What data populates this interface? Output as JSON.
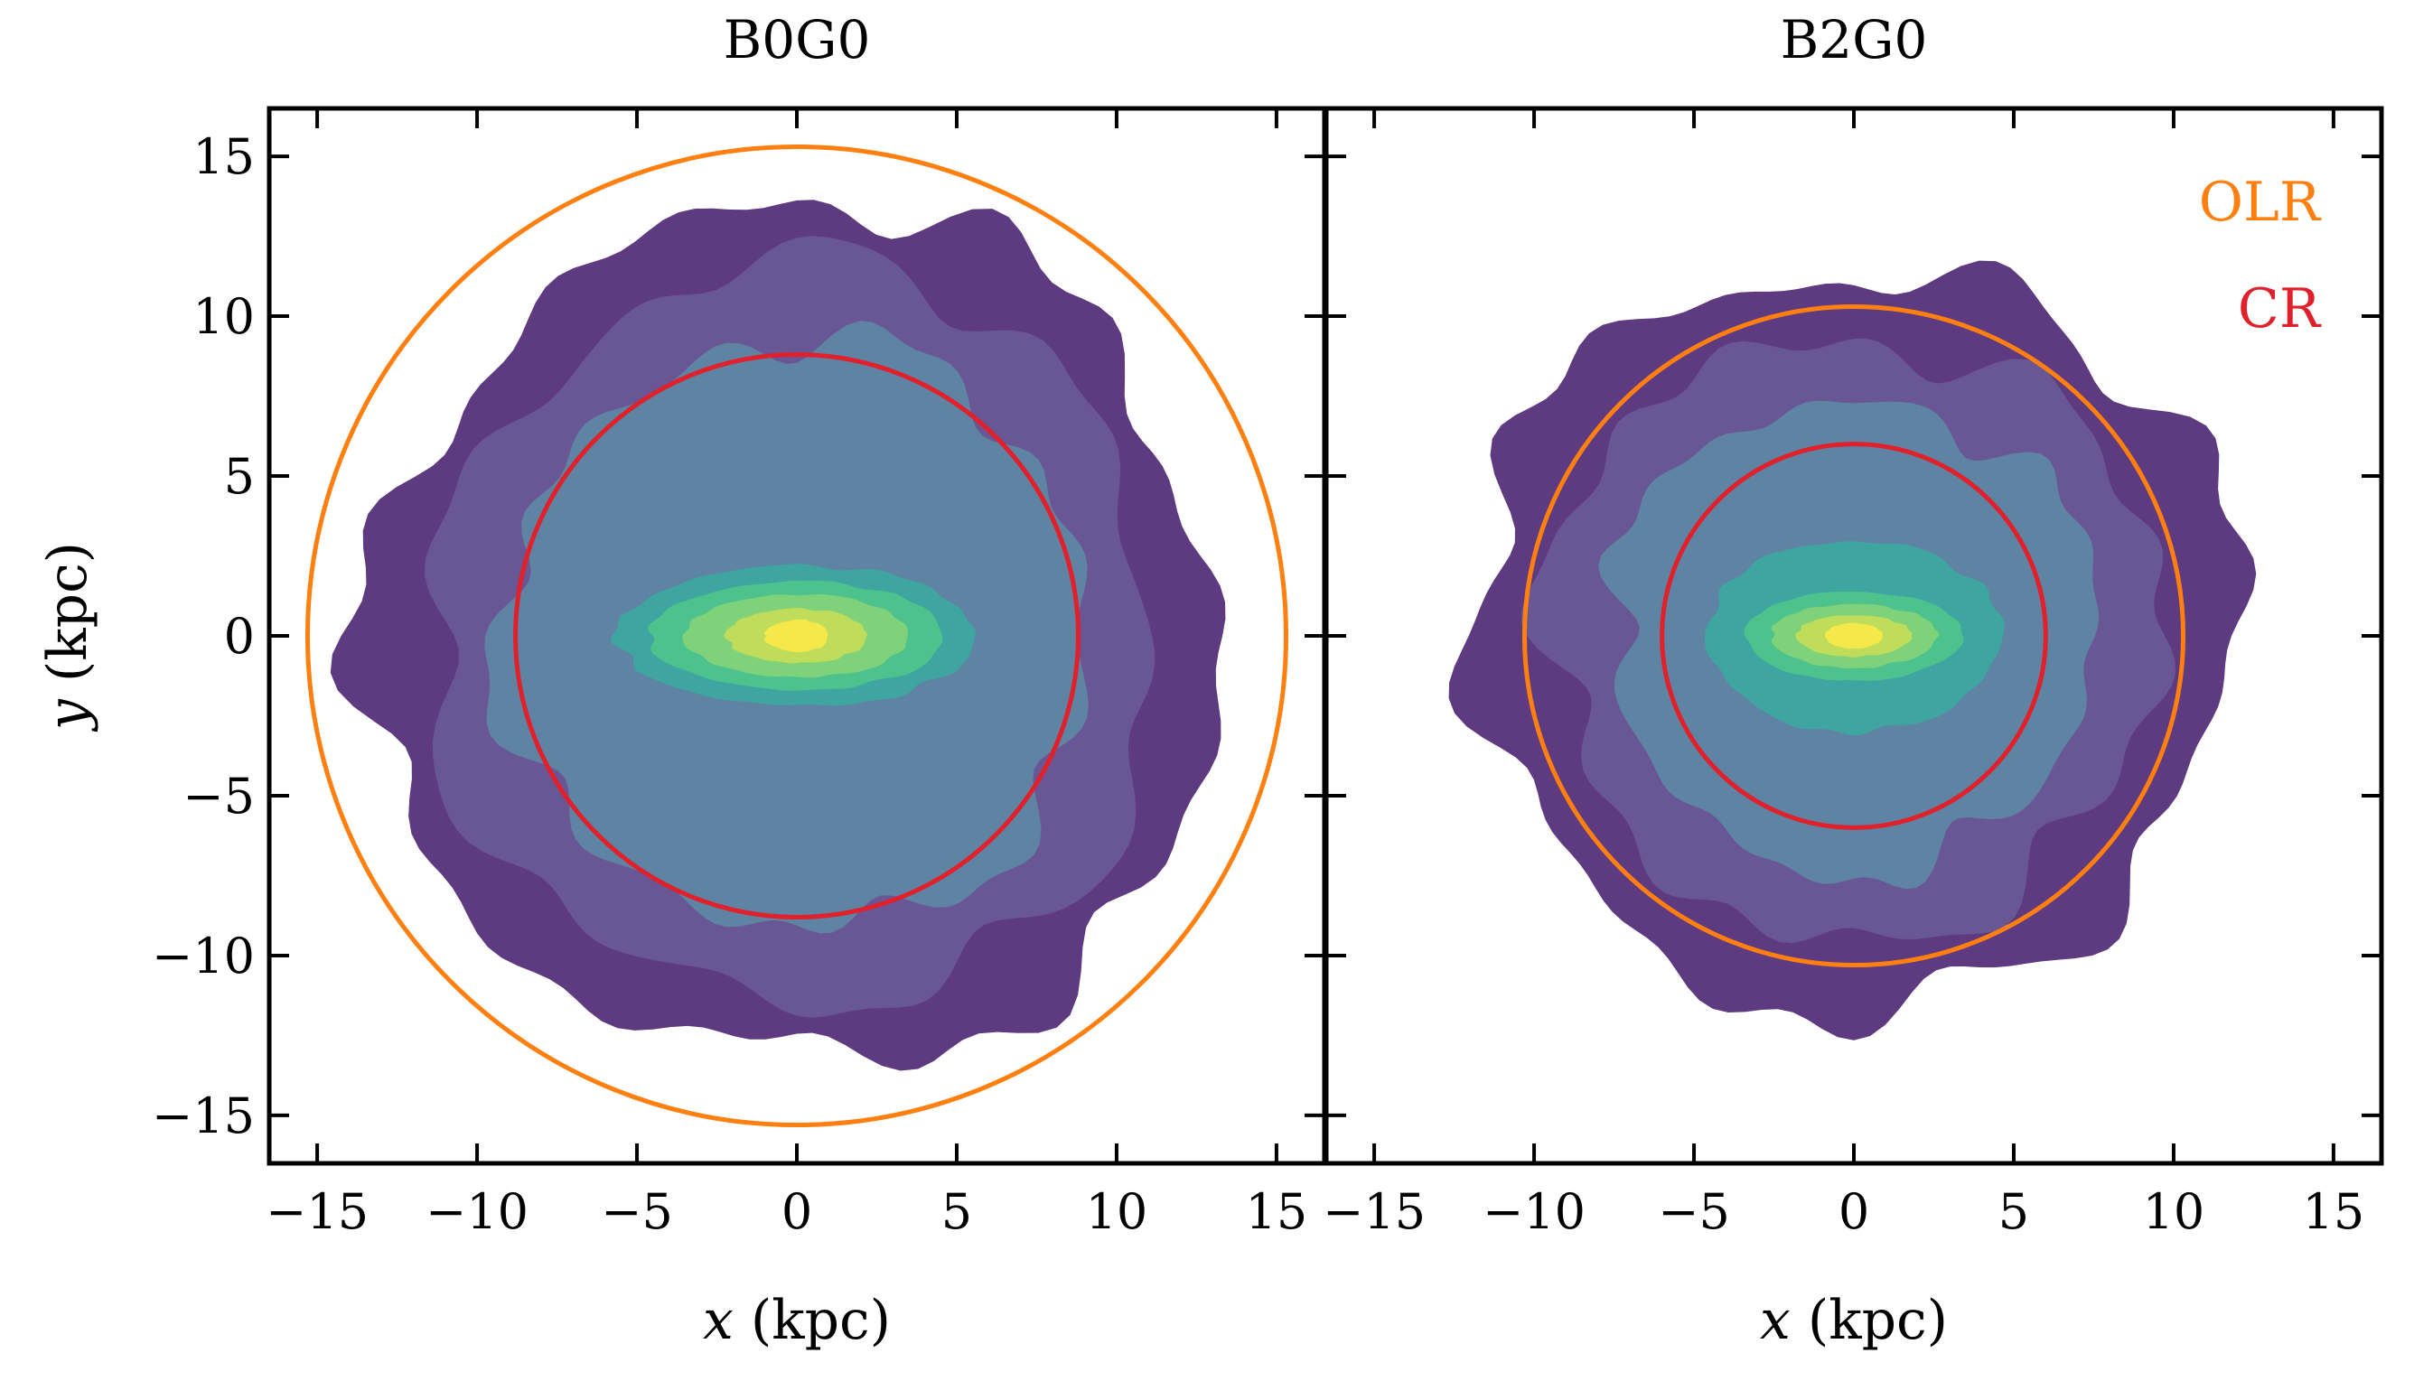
{
  "chart_data": [
    {
      "type": "contour",
      "title": "B0G0",
      "xlabel_var": "x",
      "xlabel_unit": "(kpc)",
      "ylabel_var": "y",
      "ylabel_unit": "(kpc)",
      "xlim": [
        -16.5,
        16.5
      ],
      "ylim": [
        -16.5,
        16.5
      ],
      "xticks": [
        -15,
        -10,
        -5,
        0,
        5,
        10,
        15
      ],
      "yticks": [
        -15,
        -10,
        -5,
        0,
        5,
        10,
        15
      ],
      "xtick_labels": [
        "−15",
        "−10",
        "−5",
        "0",
        "5",
        "10",
        "15"
      ],
      "ytick_labels": [
        "−15",
        "−10",
        "−5",
        "0",
        "5",
        "10",
        "15"
      ],
      "density_levels": [
        {
          "level": 1,
          "color": "#5e3a80",
          "rx": 13.3,
          "ry": 13.4
        },
        {
          "level": 2,
          "color": "#695694",
          "rx": 11.3,
          "ry": 11.6
        },
        {
          "level": 3,
          "color": "#5f83a2",
          "rx": 9.2,
          "ry": 9.2
        },
        {
          "level": 4,
          "color": "#3fa5a0",
          "rx": 5.6,
          "ry": 2.2
        },
        {
          "level": 5,
          "color": "#4ec28d",
          "rx": 4.6,
          "ry": 1.7
        },
        {
          "level": 6,
          "color": "#7fd27a",
          "rx": 3.5,
          "ry": 1.3
        },
        {
          "level": 7,
          "color": "#bfdd5a",
          "rx": 2.2,
          "ry": 0.85
        },
        {
          "level": 8,
          "color": "#f5e84a",
          "rx": 1.0,
          "ry": 0.5
        }
      ],
      "resonances": [
        {
          "name": "OLR",
          "radius": 15.3,
          "color": "#ff8010"
        },
        {
          "name": "CR",
          "radius": 8.8,
          "color": "#e0202a"
        }
      ]
    },
    {
      "type": "contour",
      "title": "B2G0",
      "xlabel_var": "x",
      "xlabel_unit": "(kpc)",
      "xlim": [
        -16.5,
        16.5
      ],
      "ylim": [
        -16.5,
        16.5
      ],
      "xticks": [
        -15,
        -10,
        -5,
        0,
        5,
        10,
        15
      ],
      "xtick_labels": [
        "−15",
        "−10",
        "−5",
        "0",
        "5",
        "10",
        "15"
      ],
      "density_levels": [
        {
          "level": 1,
          "color": "#5e3a80",
          "rx": 11.9,
          "ry": 11.6
        },
        {
          "level": 2,
          "color": "#695694",
          "rx": 9.6,
          "ry": 9.4
        },
        {
          "level": 3,
          "color": "#5f83a2",
          "rx": 7.6,
          "ry": 7.4
        },
        {
          "level": 4,
          "color": "#3fa5a0",
          "rx": 4.6,
          "ry": 3.0
        },
        {
          "level": 5,
          "color": "#4ec28d",
          "rx": 3.4,
          "ry": 1.4
        },
        {
          "level": 6,
          "color": "#7fd27a",
          "rx": 2.6,
          "ry": 1.0
        },
        {
          "level": 7,
          "color": "#bfdd5a",
          "rx": 1.8,
          "ry": 0.65
        },
        {
          "level": 8,
          "color": "#f5e84a",
          "rx": 0.9,
          "ry": 0.4
        }
      ],
      "resonances": [
        {
          "name": "OLR",
          "radius": 10.3,
          "color": "#ff8010"
        },
        {
          "name": "CR",
          "radius": 6.0,
          "color": "#e0202a"
        }
      ],
      "legend": [
        {
          "label": "OLR",
          "color": "#ff8010"
        },
        {
          "label": "CR",
          "color": "#e0202a"
        }
      ],
      "legend_position": "top-right"
    }
  ]
}
